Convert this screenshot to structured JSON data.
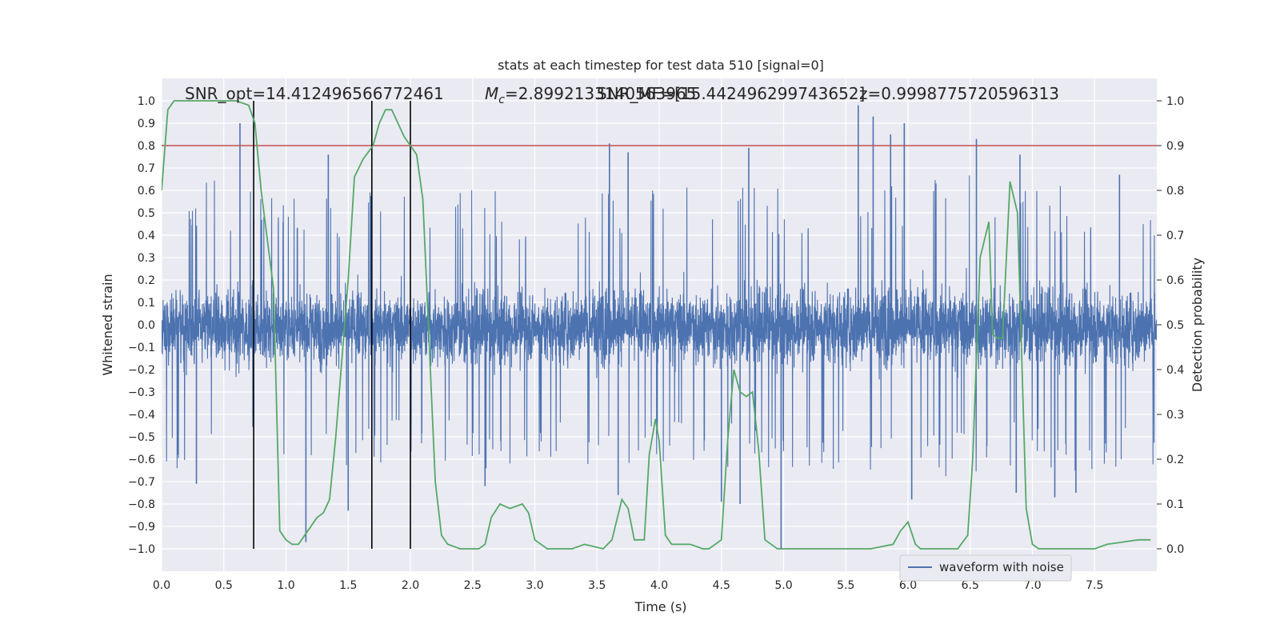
{
  "chart_data": {
    "type": "line",
    "title": "stats at each timestep for test data 510 [signal=0]",
    "xlabel": "Time (s)",
    "ylabel": "Whitened strain",
    "y2label": "Detection probability",
    "xlim": [
      0.0,
      8.0
    ],
    "ylim": [
      -1.1,
      1.1
    ],
    "y2lim": [
      -0.05,
      1.05
    ],
    "xticks": [
      "0.0",
      "0.5",
      "1.0",
      "1.5",
      "2.0",
      "2.5",
      "3.0",
      "3.5",
      "4.0",
      "4.5",
      "5.0",
      "5.5",
      "6.0",
      "6.5",
      "7.0",
      "7.5"
    ],
    "yticks": [
      "1.0",
      "0.9",
      "0.8",
      "0.7",
      "0.6",
      "0.5",
      "0.4",
      "0.3",
      "0.2",
      "0.1",
      "0.0",
      "-0.1",
      "-0.2",
      "-0.3",
      "-0.4",
      "-0.5",
      "-0.6",
      "-0.7",
      "-0.8",
      "-0.9",
      "-1.0"
    ],
    "y2ticks": [
      "1.0",
      "0.9",
      "0.8",
      "0.7",
      "0.6",
      "0.5",
      "0.4",
      "0.3",
      "0.2",
      "0.1",
      "0.0"
    ],
    "grid": true,
    "legend": {
      "entries": [
        "waveform with noise"
      ],
      "placement": "lower-right"
    },
    "annotations": [
      "SNR_opt=14.412496566772461",
      "$M_c$=2.8992133140563965",
      "SNR_MF=[15.442496299743652]",
      "z=0.9998775720596313"
    ],
    "threshold": {
      "axis": "y2",
      "value": 0.9,
      "color": "#c44e52"
    },
    "vertical_lines": [
      0.74,
      1.69,
      2.0
    ],
    "series": [
      {
        "name": "waveform with noise",
        "axis": "y",
        "color": "#4c72b0",
        "description_envelope": {
          "x": [
            0.0,
            0.5,
            1.0,
            1.5,
            2.0,
            2.5,
            3.0,
            3.5,
            4.0,
            4.5,
            5.0,
            5.5,
            6.0,
            6.5,
            7.0,
            7.5,
            8.0
          ],
          "upper_typical": [
            0.35,
            0.38,
            0.32,
            0.36,
            0.34,
            0.36,
            0.34,
            0.38,
            0.36,
            0.38,
            0.36,
            0.4,
            0.38,
            0.4,
            0.36,
            0.38,
            0.36
          ],
          "lower_typical": [
            -0.38,
            -0.4,
            -0.36,
            -0.38,
            -0.36,
            -0.4,
            -0.36,
            -0.38,
            -0.36,
            -0.4,
            -0.38,
            -0.4,
            -0.38,
            -0.42,
            -0.38,
            -0.4,
            -0.38
          ]
        },
        "peaks": [
          {
            "x": 0.63,
            "y": 0.9
          },
          {
            "x": 1.34,
            "y": 0.76
          },
          {
            "x": 3.6,
            "y": 0.81
          },
          {
            "x": 3.75,
            "y": 0.77
          },
          {
            "x": 4.72,
            "y": 0.79
          },
          {
            "x": 5.6,
            "y": 0.98
          },
          {
            "x": 5.72,
            "y": 0.93
          },
          {
            "x": 5.86,
            "y": 0.85
          },
          {
            "x": 5.97,
            "y": 0.9
          },
          {
            "x": 6.55,
            "y": 0.83
          },
          {
            "x": 6.9,
            "y": 0.76
          },
          {
            "x": 7.7,
            "y": 0.67
          },
          {
            "x": 1.16,
            "y": -0.97
          },
          {
            "x": 4.5,
            "y": -0.79
          },
          {
            "x": 4.98,
            "y": -1.0
          },
          {
            "x": 4.65,
            "y": -0.8
          },
          {
            "x": 6.87,
            "y": -0.75
          },
          {
            "x": 7.18,
            "y": -0.77
          },
          {
            "x": 0.28,
            "y": -0.71
          },
          {
            "x": 1.5,
            "y": -0.83
          },
          {
            "x": 2.6,
            "y": -0.72
          },
          {
            "x": 6.03,
            "y": -0.78
          },
          {
            "x": 7.35,
            "y": -0.75
          },
          {
            "x": 3.67,
            "y": -0.76
          }
        ]
      },
      {
        "name": "",
        "axis": "y2",
        "color": "#55a868",
        "x": [
          0.0,
          0.05,
          0.1,
          0.2,
          0.4,
          0.6,
          0.7,
          0.75,
          0.8,
          0.9,
          0.95,
          1.0,
          1.05,
          1.1,
          1.15,
          1.25,
          1.3,
          1.35,
          1.4,
          1.5,
          1.55,
          1.62,
          1.7,
          1.75,
          1.8,
          1.85,
          1.9,
          1.95,
          2.0,
          2.05,
          2.1,
          2.2,
          2.25,
          2.3,
          2.4,
          2.5,
          2.55,
          2.6,
          2.65,
          2.72,
          2.8,
          2.9,
          2.95,
          3.0,
          3.1,
          3.2,
          3.3,
          3.4,
          3.55,
          3.62,
          3.7,
          3.75,
          3.8,
          3.88,
          3.92,
          3.97,
          4.0,
          4.05,
          4.1,
          4.2,
          4.25,
          4.35,
          4.4,
          4.5,
          4.55,
          4.6,
          4.65,
          4.7,
          4.75,
          4.8,
          4.85,
          4.95,
          5.0,
          5.2,
          5.5,
          5.7,
          5.88,
          5.94,
          6.0,
          6.06,
          6.1,
          6.2,
          6.4,
          6.48,
          6.52,
          6.58,
          6.65,
          6.68,
          6.72,
          6.76,
          6.82,
          6.88,
          6.95,
          7.0,
          7.05,
          7.2,
          7.5,
          7.6,
          7.85,
          7.95
        ],
        "y": [
          0.8,
          0.98,
          1.0,
          1.0,
          1.0,
          1.0,
          0.99,
          0.95,
          0.8,
          0.58,
          0.04,
          0.02,
          0.01,
          0.01,
          0.03,
          0.07,
          0.08,
          0.11,
          0.25,
          0.6,
          0.83,
          0.87,
          0.9,
          0.95,
          0.98,
          0.98,
          0.95,
          0.92,
          0.9,
          0.88,
          0.78,
          0.15,
          0.03,
          0.01,
          0.0,
          0.0,
          0.0,
          0.01,
          0.07,
          0.1,
          0.09,
          0.1,
          0.08,
          0.02,
          0.0,
          0.0,
          0.0,
          0.01,
          0.0,
          0.02,
          0.11,
          0.09,
          0.02,
          0.02,
          0.21,
          0.29,
          0.24,
          0.03,
          0.01,
          0.01,
          0.01,
          0.0,
          0.0,
          0.02,
          0.24,
          0.4,
          0.35,
          0.34,
          0.35,
          0.22,
          0.02,
          0.0,
          0.0,
          0.0,
          0.0,
          0.0,
          0.01,
          0.04,
          0.06,
          0.01,
          0.0,
          0.0,
          0.0,
          0.03,
          0.2,
          0.65,
          0.73,
          0.48,
          0.47,
          0.47,
          0.82,
          0.75,
          0.09,
          0.01,
          0.0,
          0.0,
          0.0,
          0.01,
          0.02,
          0.02
        ]
      }
    ]
  }
}
